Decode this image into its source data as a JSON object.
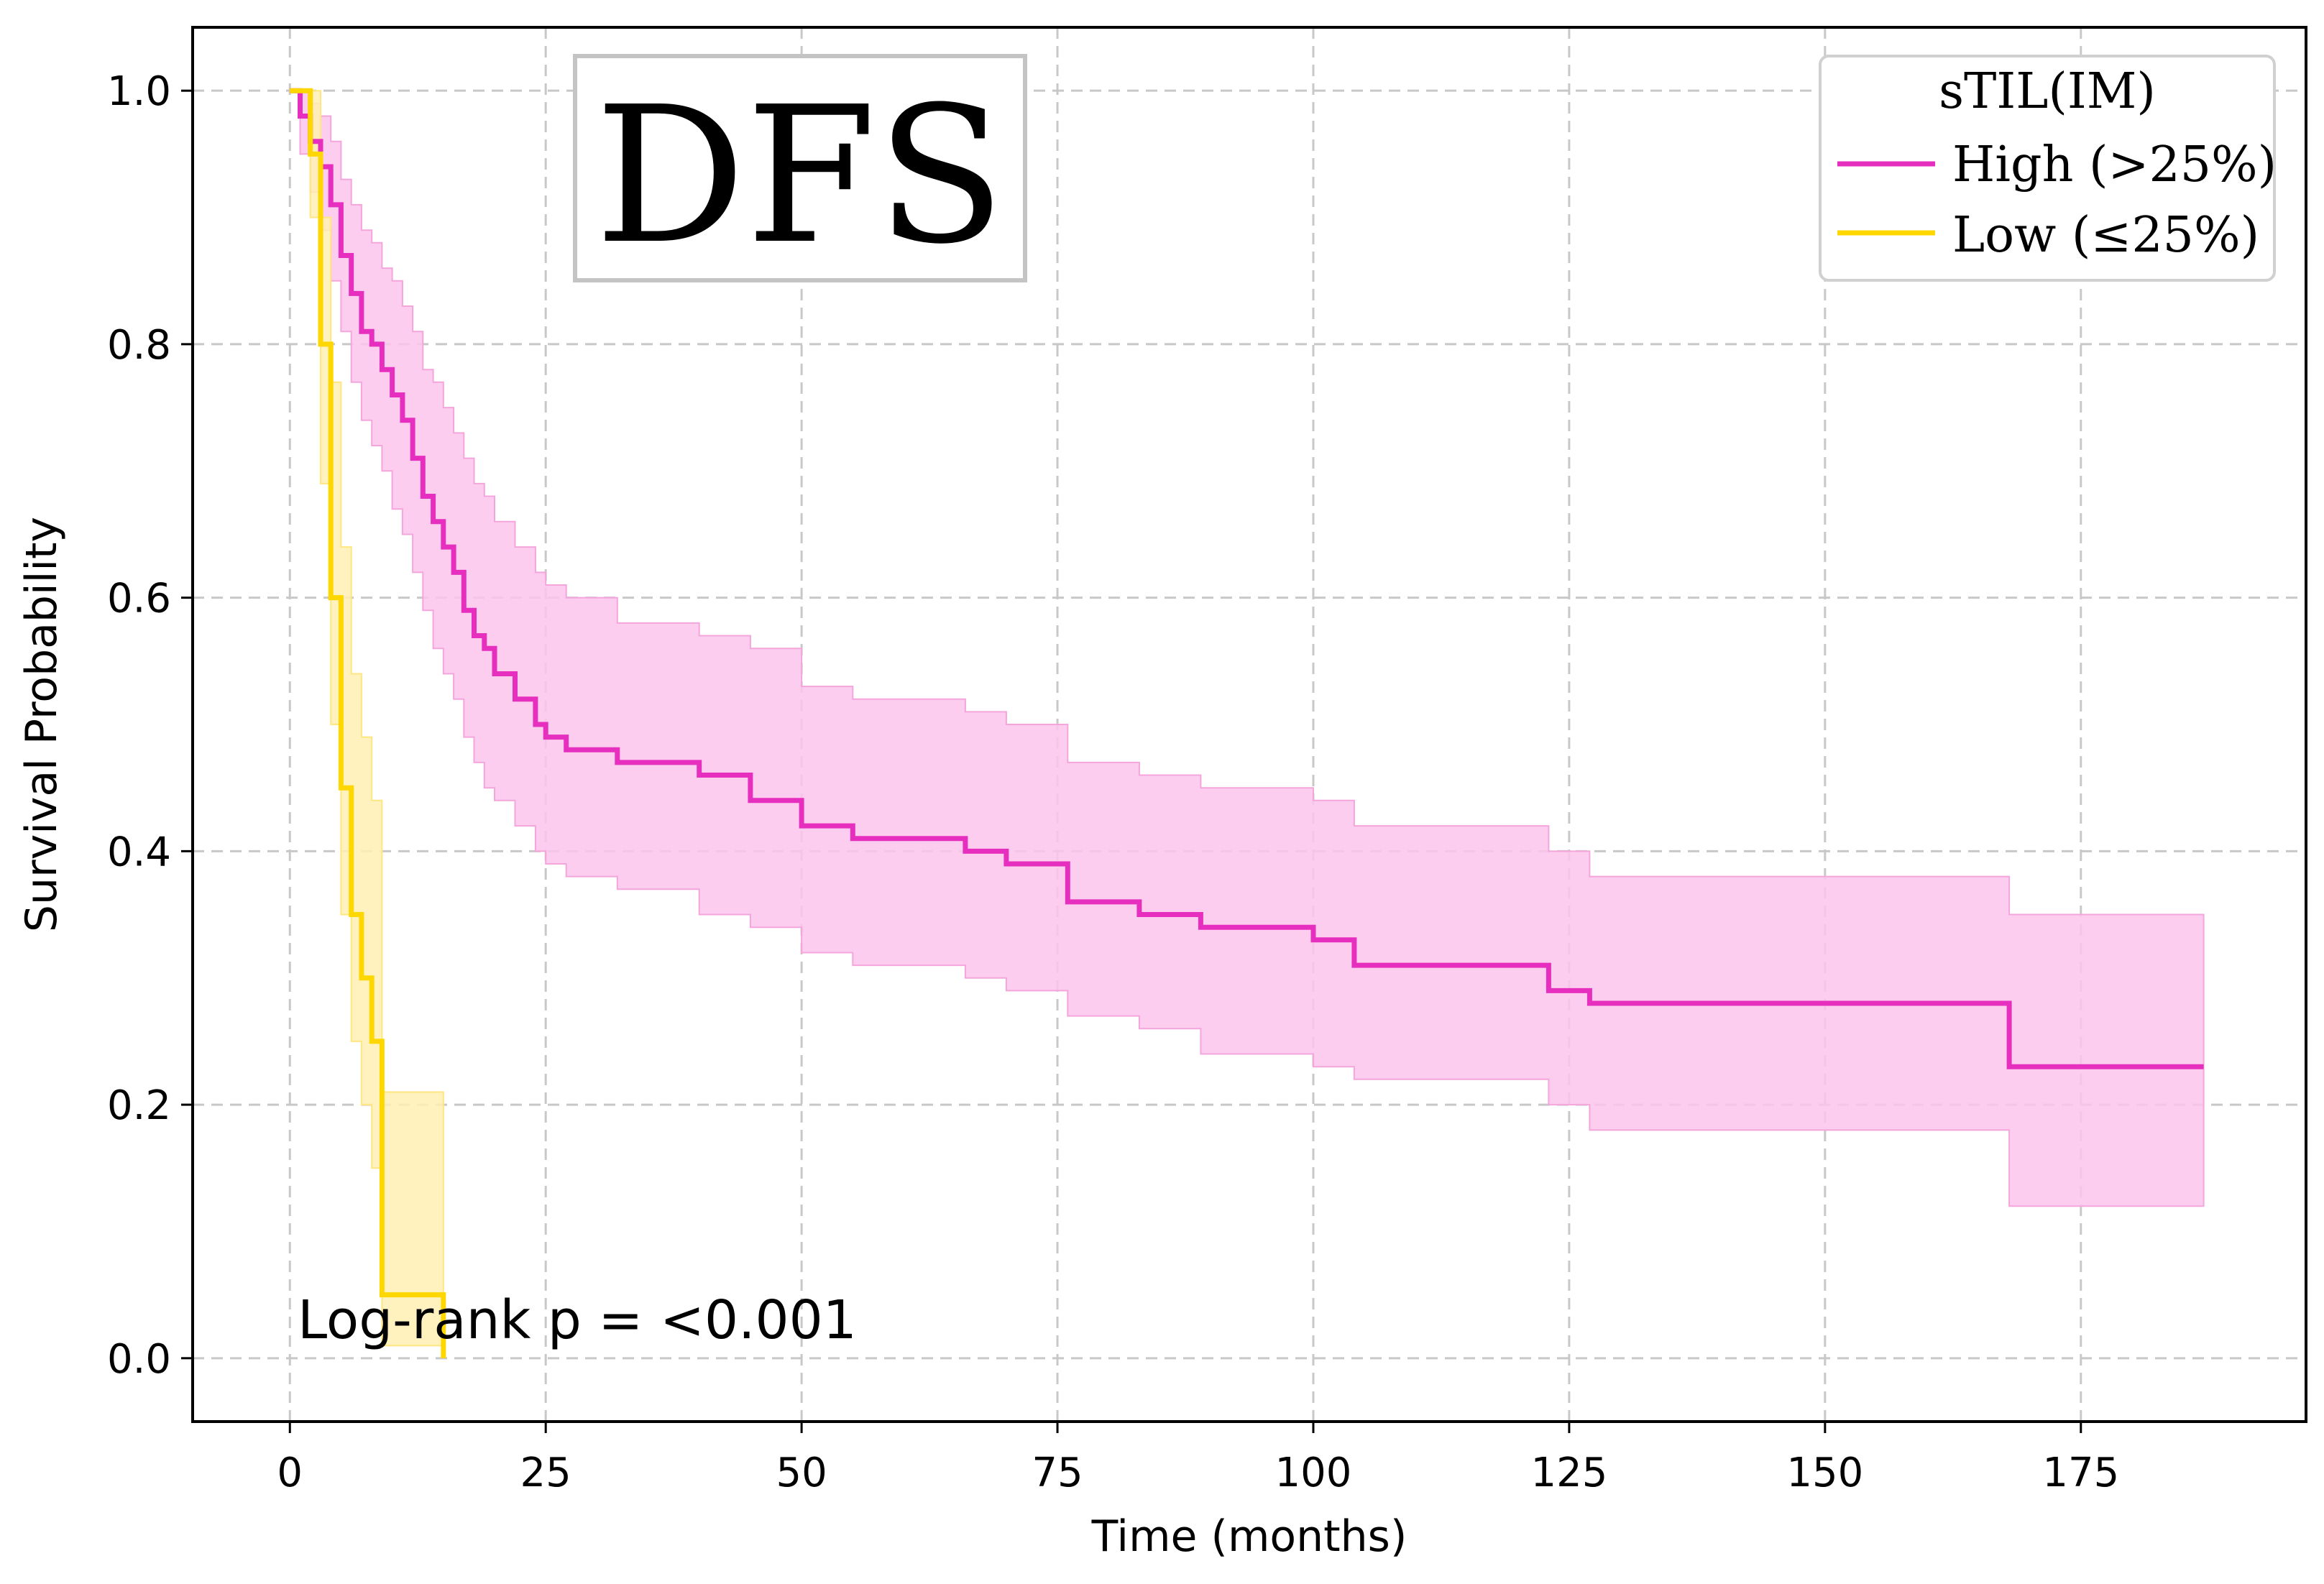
{
  "chart_data": {
    "type": "line",
    "subtype": "kaplan-meier",
    "title": "DFS",
    "xlabel": "Time (months)",
    "ylabel": "Survival Probability",
    "xlim": [
      -9.5,
      197
    ],
    "ylim": [
      -0.05,
      1.05
    ],
    "xticks": [
      0,
      25,
      50,
      75,
      100,
      125,
      150,
      175
    ],
    "yticks": [
      0.0,
      0.2,
      0.4,
      0.6,
      0.8,
      1.0
    ],
    "grid": true,
    "legend": {
      "title": "sTIL(IM)",
      "placement": "top-right"
    },
    "annotation": "Log-rank p = <0.001",
    "series": [
      {
        "name": "High (>25%)",
        "color": "#e62fbe",
        "band_fill": "#fcc4ec",
        "band_stroke": "#f4a6dc",
        "x": [
          0,
          1,
          2,
          3,
          4,
          5,
          6,
          7,
          8,
          9,
          10,
          11,
          12,
          13,
          14,
          15,
          16,
          17,
          18,
          19,
          20,
          22,
          24,
          25,
          27,
          32,
          40,
          45,
          50,
          55,
          66,
          70,
          76,
          83,
          89,
          100,
          104,
          123,
          127,
          168,
          187
        ],
        "y": [
          1.0,
          0.98,
          0.96,
          0.94,
          0.91,
          0.87,
          0.84,
          0.81,
          0.8,
          0.78,
          0.76,
          0.74,
          0.71,
          0.68,
          0.66,
          0.64,
          0.62,
          0.59,
          0.57,
          0.56,
          0.54,
          0.52,
          0.5,
          0.49,
          0.48,
          0.47,
          0.46,
          0.44,
          0.42,
          0.41,
          0.4,
          0.39,
          0.36,
          0.35,
          0.34,
          0.33,
          0.31,
          0.29,
          0.28,
          0.23,
          0.23
        ],
        "upper": [
          1.0,
          1.0,
          0.99,
          0.98,
          0.96,
          0.93,
          0.91,
          0.89,
          0.88,
          0.86,
          0.85,
          0.83,
          0.81,
          0.78,
          0.77,
          0.75,
          0.73,
          0.71,
          0.69,
          0.68,
          0.66,
          0.64,
          0.62,
          0.61,
          0.6,
          0.58,
          0.57,
          0.56,
          0.53,
          0.52,
          0.51,
          0.5,
          0.47,
          0.46,
          0.45,
          0.44,
          0.42,
          0.4,
          0.38,
          0.35,
          0.35
        ],
        "lower": [
          1.0,
          0.95,
          0.92,
          0.89,
          0.85,
          0.81,
          0.77,
          0.74,
          0.72,
          0.7,
          0.67,
          0.65,
          0.62,
          0.59,
          0.56,
          0.54,
          0.52,
          0.49,
          0.47,
          0.45,
          0.44,
          0.42,
          0.4,
          0.39,
          0.38,
          0.37,
          0.35,
          0.34,
          0.32,
          0.31,
          0.3,
          0.29,
          0.27,
          0.26,
          0.24,
          0.23,
          0.22,
          0.2,
          0.18,
          0.12,
          0.12
        ]
      },
      {
        "name": "Low (≤25%)",
        "color": "#ffd700",
        "band_fill": "#fff0b3",
        "band_stroke": "#ffe680",
        "x": [
          0,
          2,
          3,
          4,
          5,
          6,
          7,
          8,
          9,
          15
        ],
        "y": [
          1.0,
          0.95,
          0.8,
          0.6,
          0.45,
          0.35,
          0.3,
          0.25,
          0.05,
          0.0
        ],
        "upper": [
          1.0,
          1.0,
          0.9,
          0.77,
          0.64,
          0.54,
          0.49,
          0.44,
          0.21,
          0.21
        ],
        "lower": [
          1.0,
          0.9,
          0.69,
          0.5,
          0.35,
          0.25,
          0.2,
          0.15,
          0.01,
          0.0
        ]
      }
    ]
  }
}
